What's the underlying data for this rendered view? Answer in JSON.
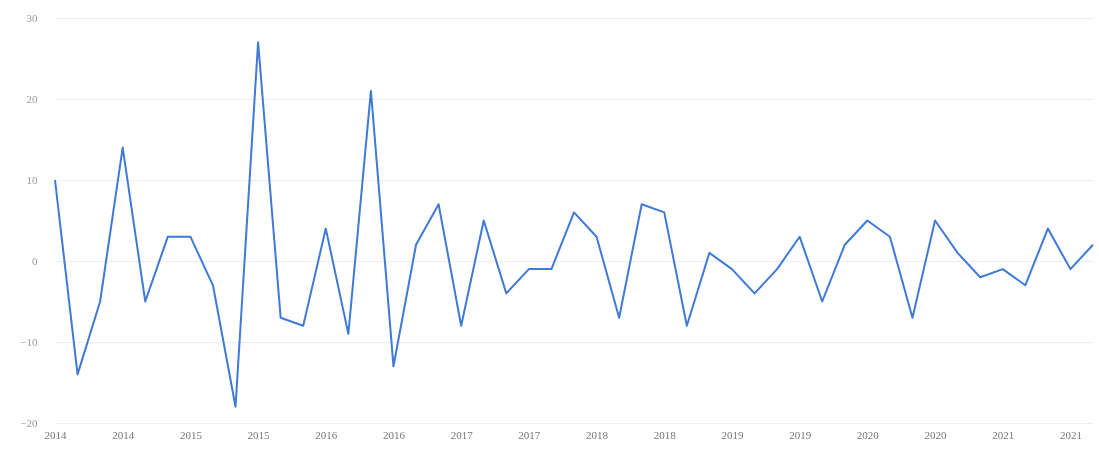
{
  "chart_data": {
    "type": "line",
    "categories": [
      "2014",
      null,
      null,
      "2014",
      null,
      null,
      "2015",
      null,
      null,
      "2015",
      null,
      null,
      "2016",
      null,
      null,
      "2016",
      null,
      null,
      "2017",
      null,
      null,
      "2017",
      null,
      null,
      "2018",
      null,
      null,
      "2018",
      null,
      null,
      "2019",
      null,
      null,
      "2019",
      null,
      null,
      "2020",
      null,
      null,
      "2020",
      null,
      null,
      "2021",
      null,
      null,
      "2021",
      null
    ],
    "series": [
      {
        "color": "#3f7ad6",
        "values": [
          10,
          -14,
          -5,
          14,
          -5,
          3,
          3,
          -3,
          -18,
          27,
          -7,
          -8,
          4,
          -9,
          21,
          -13,
          2,
          7,
          -8,
          5,
          -4,
          -1,
          -1,
          6,
          3,
          -7,
          7,
          6,
          -8,
          1,
          -1,
          -4,
          -1,
          3,
          -5,
          2,
          5,
          3,
          -7,
          5,
          1,
          -2,
          -1,
          -3,
          4,
          -1,
          2
        ]
      }
    ],
    "ylim": [
      -20,
      30
    ],
    "yticks": [
      -20,
      -10,
      0,
      10,
      20,
      30
    ],
    "grid": "y",
    "marker": "none",
    "line_style": "solid"
  }
}
